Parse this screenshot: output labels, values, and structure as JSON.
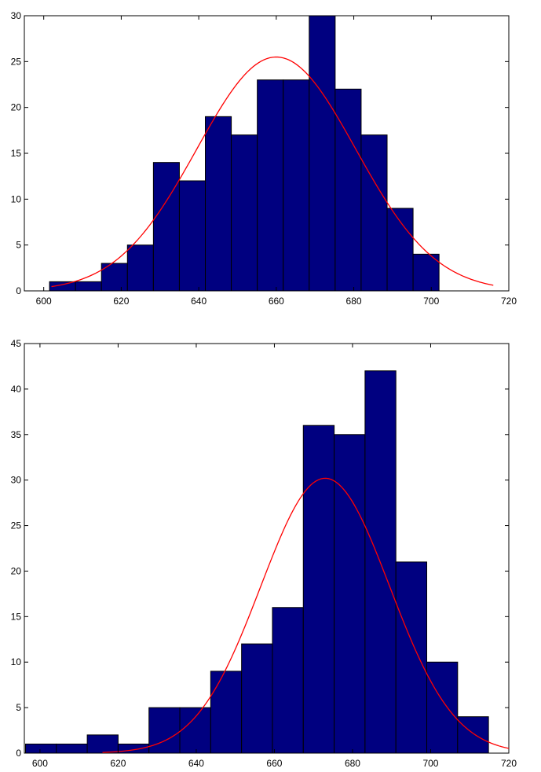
{
  "chart_data": [
    {
      "type": "bar",
      "subtype": "histogram-with-normal-fit",
      "title": "",
      "xlabel": "",
      "ylabel": "",
      "xlim": [
        595,
        720
      ],
      "ylim": [
        0,
        30
      ],
      "x_ticks": [
        600,
        620,
        640,
        660,
        680,
        700,
        720
      ],
      "y_ticks": [
        0,
        5,
        10,
        15,
        20,
        25,
        30
      ],
      "bin_edges": [
        601.5,
        608.2,
        614.9,
        621.6,
        628.3,
        635.0,
        641.7,
        648.4,
        655.1,
        661.8,
        668.5,
        675.2,
        681.9,
        688.6,
        695.3,
        702.0
      ],
      "values": [
        1,
        1,
        3,
        5,
        14,
        12,
        19,
        17,
        23,
        23,
        30,
        22,
        17,
        9,
        4
      ],
      "bar_color": "#000080",
      "fit": {
        "mean": 660,
        "std": 20.5,
        "peak": 25.5,
        "x_range": [
          602,
          716
        ],
        "color": "#ff0000"
      }
    },
    {
      "type": "bar",
      "subtype": "histogram-with-normal-fit",
      "title": "",
      "xlabel": "",
      "ylabel": "",
      "xlim": [
        596,
        720
      ],
      "ylim": [
        0,
        45
      ],
      "x_ticks": [
        600,
        620,
        640,
        660,
        680,
        700,
        720
      ],
      "y_ticks": [
        0,
        5,
        10,
        15,
        20,
        25,
        30,
        35,
        40,
        45
      ],
      "bin_edges": [
        596.3,
        604.2,
        612.1,
        620.0,
        627.9,
        635.8,
        643.7,
        651.6,
        659.5,
        667.4,
        675.3,
        683.2,
        691.1,
        699.0,
        706.9,
        714.8
      ],
      "values": [
        1,
        1,
        2,
        1,
        5,
        5,
        9,
        12,
        16,
        36,
        35,
        42,
        21,
        10,
        4
      ],
      "bar_color": "#000080",
      "fit": {
        "mean": 673,
        "std": 16.5,
        "peak": 30.2,
        "x_range": [
          616,
          720
        ],
        "color": "#ff0000"
      }
    }
  ]
}
